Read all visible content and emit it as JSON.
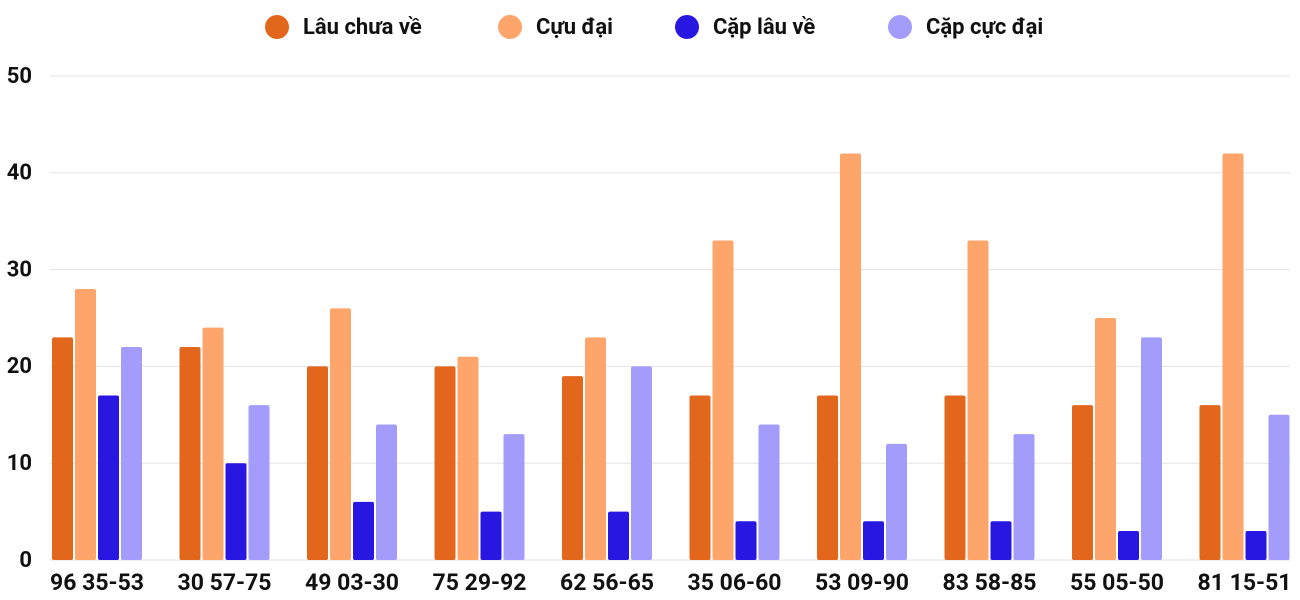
{
  "chart_data": {
    "type": "bar",
    "categories": [
      "96 35-53",
      "30 57-75",
      "49 03-30",
      "75 29-92",
      "62 56-65",
      "35 06-60",
      "53 09-90",
      "83 58-85",
      "55 05-50",
      "81 15-51"
    ],
    "series": [
      {
        "name": "Lâu chưa về",
        "color": "#e2661b",
        "values": [
          23,
          22,
          20,
          20,
          19,
          17,
          17,
          17,
          16,
          16
        ]
      },
      {
        "name": "Cựu đại",
        "color": "#fda56b",
        "values": [
          28,
          24,
          26,
          21,
          23,
          33,
          42,
          33,
          25,
          42
        ]
      },
      {
        "name": "Cặp lâu về",
        "color": "#2817e0",
        "values": [
          17,
          10,
          6,
          5,
          5,
          4,
          4,
          4,
          3,
          3
        ]
      },
      {
        "name": "Cặp cực đại",
        "color": "#a39cfb",
        "values": [
          22,
          16,
          14,
          13,
          20,
          14,
          12,
          13,
          23,
          15
        ]
      }
    ],
    "ylim": [
      0,
      50
    ],
    "yticks": [
      0,
      10,
      20,
      30,
      40,
      50
    ],
    "grid": true,
    "legend": "top"
  }
}
